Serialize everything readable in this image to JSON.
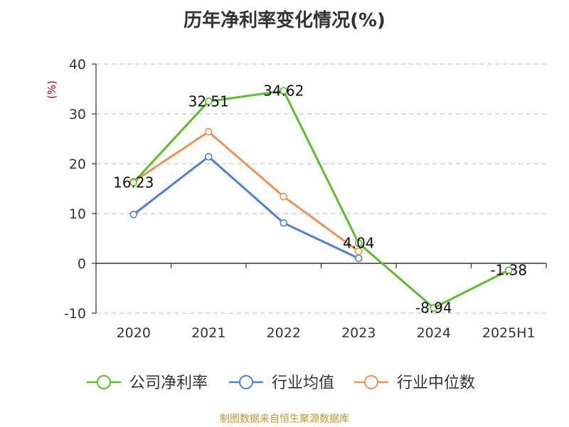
{
  "title": "历年净利率变化情况(%)",
  "source_note": "制图数据来自恒生聚源数据库",
  "chart_data": {
    "type": "line",
    "title": "历年净利率变化情况(%)",
    "ylabel": "(%)",
    "xlabel": "",
    "categories": [
      "2020",
      "2021",
      "2022",
      "2023",
      "2024",
      "2025H1"
    ],
    "ylim": [
      -10,
      40
    ],
    "yticks": [
      -10,
      0,
      10,
      20,
      30,
      40
    ],
    "grid": true,
    "legend_position": "bottom",
    "series": [
      {
        "name": "公司净利率",
        "color": "#5cbf2a",
        "values": [
          16.23,
          32.51,
          34.62,
          4.04,
          -8.94,
          -1.38
        ],
        "labels": [
          "16.23",
          "32.51",
          "34.62",
          "4.04",
          "-8.94",
          "-1.38"
        ]
      },
      {
        "name": "行业均值",
        "color": "#4f7fd9",
        "values": [
          9.8,
          21.4,
          8.1,
          1.0,
          null,
          null
        ]
      },
      {
        "name": "行业中位数",
        "color": "#f0915a",
        "values": [
          16.4,
          26.4,
          13.4,
          2.4,
          null,
          null
        ]
      }
    ]
  }
}
